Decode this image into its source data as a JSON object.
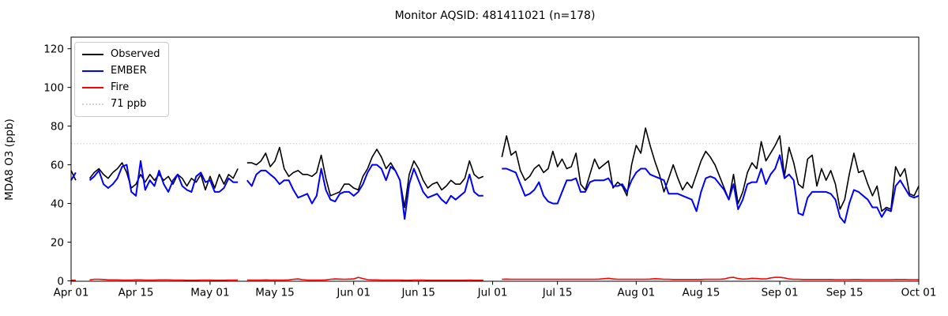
{
  "figure": {
    "title": "Monitor AQSID: 481411021 (n=178)"
  },
  "chart_data": {
    "type": "line",
    "title": "Monitor AQSID: 481411021 (n=178)",
    "xlabel": "",
    "ylabel": "MDA8 O3 (ppb)",
    "ylim": [
      0,
      126
    ],
    "grid": false,
    "legend_position": "upper left",
    "x_axis": {
      "unit": "days since Apr 01",
      "range_days": [
        0,
        183
      ],
      "ticks": [
        {
          "pos": 0,
          "label": "Apr 01"
        },
        {
          "pos": 14,
          "label": "Apr 15"
        },
        {
          "pos": 30,
          "label": "May 01"
        },
        {
          "pos": 44,
          "label": "May 15"
        },
        {
          "pos": 61,
          "label": "Jun 01"
        },
        {
          "pos": 75,
          "label": "Jun 15"
        },
        {
          "pos": 91,
          "label": "Jul 01"
        },
        {
          "pos": 105,
          "label": "Jul 15"
        },
        {
          "pos": 122,
          "label": "Aug 01"
        },
        {
          "pos": 136,
          "label": "Aug 15"
        },
        {
          "pos": 153,
          "label": "Sep 01"
        },
        {
          "pos": 167,
          "label": "Sep 15"
        },
        {
          "pos": 183,
          "label": "Oct 01"
        }
      ]
    },
    "y_ticks": [
      0,
      20,
      40,
      60,
      80,
      100,
      120
    ],
    "threshold": {
      "value": 71,
      "label": "71 ppb",
      "color": "#d3d3d3",
      "style": "dotted"
    },
    "legend": [
      {
        "label": "Observed",
        "color": "#000000",
        "style": "solid"
      },
      {
        "label": "EMBER",
        "color": "#0000ff",
        "style": "solid"
      },
      {
        "label": "Fire",
        "color": "#ff0000",
        "style": "solid"
      },
      {
        "label": "71 ppb",
        "color": "#d3d3d3",
        "style": "dotted"
      }
    ],
    "series": [
      {
        "name": "Observed",
        "color": "#000000",
        "width": 1.6,
        "values": [
          57,
          52,
          null,
          null,
          53,
          56,
          58,
          55,
          53,
          56,
          58,
          61,
          56,
          48,
          50,
          55,
          51,
          55,
          52,
          55,
          52,
          54,
          50,
          55,
          53,
          49,
          53,
          51,
          55,
          47,
          54,
          48,
          55,
          50,
          55,
          53,
          58,
          null,
          61,
          61,
          60,
          62,
          66,
          59,
          62,
          69,
          58,
          54,
          56,
          57,
          55,
          55,
          54,
          56,
          65,
          53,
          44,
          45,
          46,
          50,
          50,
          48,
          47,
          54,
          58,
          64,
          68,
          64,
          58,
          61,
          57,
          52,
          38,
          55,
          62,
          58,
          52,
          48,
          50,
          51,
          47,
          49,
          52,
          50,
          50,
          53,
          62,
          55,
          53,
          54,
          null,
          null,
          null,
          64,
          75,
          65,
          67,
          57,
          52,
          54,
          58,
          60,
          56,
          58,
          67,
          59,
          63,
          58,
          59,
          66,
          50,
          47,
          55,
          63,
          58,
          60,
          62,
          48,
          51,
          49,
          44,
          60,
          70,
          66,
          79,
          70,
          62,
          55,
          46,
          53,
          60,
          53,
          47,
          51,
          48,
          55,
          62,
          67,
          64,
          60,
          54,
          48,
          42,
          55,
          40,
          46,
          56,
          61,
          58,
          72,
          62,
          66,
          70,
          75,
          54,
          69,
          61,
          50,
          48,
          63,
          65,
          49,
          58,
          52,
          57,
          50,
          37,
          42,
          55,
          66,
          56,
          57,
          50,
          44,
          49,
          36,
          38,
          37,
          59,
          54,
          58,
          45,
          44,
          49
        ]
      },
      {
        "name": "EMBER",
        "color": "#0000ff",
        "width": 2.0,
        "values": [
          52,
          56,
          null,
          null,
          52,
          54,
          57,
          50,
          48,
          50,
          53,
          59,
          60,
          46,
          44,
          62,
          47,
          52,
          49,
          57,
          50,
          46,
          52,
          55,
          49,
          47,
          46,
          54,
          56,
          51,
          52,
          46,
          46,
          48,
          53,
          51,
          51,
          null,
          52,
          49,
          55,
          57,
          57,
          55,
          53,
          50,
          52,
          52,
          47,
          43,
          44,
          45,
          40,
          44,
          58,
          47,
          42,
          41,
          45,
          46,
          46,
          44,
          46,
          50,
          56,
          60,
          60,
          58,
          52,
          59,
          57,
          52,
          32,
          50,
          58,
          52,
          46,
          43,
          44,
          45,
          42,
          40,
          44,
          42,
          44,
          46,
          55,
          46,
          44,
          44,
          null,
          null,
          null,
          58,
          58,
          57,
          56,
          50,
          44,
          45,
          47,
          51,
          44,
          41,
          40,
          40,
          46,
          52,
          52,
          53,
          46,
          46,
          51,
          52,
          52,
          52,
          53,
          49,
          49,
          50,
          46,
          52,
          56,
          58,
          58,
          55,
          54,
          53,
          52,
          45,
          45,
          45,
          44,
          43,
          42,
          36,
          46,
          53,
          54,
          53,
          50,
          47,
          42,
          50,
          37,
          42,
          50,
          51,
          51,
          58,
          50,
          55,
          58,
          65,
          53,
          55,
          52,
          35,
          34,
          43,
          46,
          46,
          46,
          46,
          45,
          42,
          33,
          30,
          40,
          47,
          46,
          44,
          42,
          38,
          38,
          33,
          37,
          36,
          49,
          52,
          48,
          44,
          43,
          44
        ]
      },
      {
        "name": "Fire",
        "color": "#ff0000",
        "width": 1.6,
        "values": [
          0.3,
          0.3,
          null,
          null,
          0.5,
          0.8,
          0.8,
          0.7,
          0.5,
          0.5,
          0.5,
          0.4,
          0.4,
          0.4,
          0.5,
          0.5,
          0.4,
          0.4,
          0.4,
          0.5,
          0.5,
          0.5,
          0.4,
          0.4,
          0.4,
          0.3,
          0.3,
          0.3,
          0.4,
          0.4,
          0.4,
          0.3,
          0.3,
          0.3,
          0.4,
          0.4,
          0.4,
          null,
          0.4,
          0.4,
          0.4,
          0.4,
          0.5,
          0.4,
          0.4,
          0.4,
          0.4,
          0.5,
          0.8,
          1.0,
          0.6,
          0.4,
          0.4,
          0.4,
          0.4,
          0.5,
          0.8,
          1.0,
          0.9,
          0.8,
          0.9,
          1.0,
          1.8,
          1.2,
          0.6,
          0.5,
          0.5,
          0.4,
          0.4,
          0.4,
          0.4,
          0.4,
          0.3,
          0.3,
          0.4,
          0.4,
          0.4,
          0.3,
          0.3,
          0.3,
          0.3,
          0.3,
          0.3,
          0.3,
          0.3,
          0.3,
          0.4,
          0.3,
          0.3,
          0.3,
          null,
          null,
          null,
          0.8,
          0.9,
          0.8,
          0.8,
          0.8,
          0.8,
          0.8,
          0.8,
          0.8,
          0.8,
          0.8,
          0.8,
          0.8,
          0.8,
          0.8,
          0.8,
          0.8,
          0.8,
          0.8,
          0.8,
          0.8,
          0.9,
          1.1,
          1.3,
          1.0,
          0.8,
          0.8,
          0.8,
          0.8,
          0.8,
          0.8,
          0.8,
          0.9,
          1.1,
          1.0,
          0.8,
          0.8,
          0.7,
          0.7,
          0.7,
          0.7,
          0.7,
          0.7,
          0.7,
          0.8,
          0.8,
          0.8,
          0.8,
          1.0,
          1.6,
          1.8,
          1.2,
          0.9,
          1.0,
          1.3,
          1.2,
          1.0,
          1.0,
          1.5,
          1.8,
          1.8,
          1.5,
          1.0,
          0.8,
          0.8,
          0.7,
          0.7,
          0.7,
          0.7,
          0.7,
          0.7,
          0.7,
          0.6,
          0.6,
          0.6,
          0.6,
          0.7,
          0.7,
          0.6,
          0.6,
          0.6,
          0.6,
          0.6,
          0.6,
          0.6,
          0.7,
          0.7,
          0.7,
          0.6,
          0.6,
          0.6
        ]
      }
    ]
  }
}
